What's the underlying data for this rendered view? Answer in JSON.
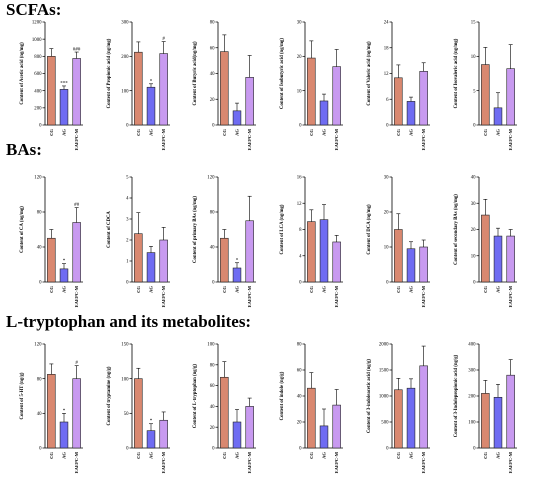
{
  "sections": [
    {
      "title": "SCFAs:"
    },
    {
      "title": "BAs:"
    },
    {
      "title": "L-tryptophan and its metabolites:"
    }
  ],
  "colors": {
    "CG": "#d98870",
    "AG": "#6f6cf2",
    "EAEPC-M": "#c89af0"
  },
  "chart_data": [
    {
      "type": "bar",
      "ylabel": "Content of Acetic acid (ng/mg)",
      "categories": [
        "CG",
        "AG",
        "EAEPC-M"
      ],
      "values": [
        800,
        415,
        775
      ],
      "errors": [
        90,
        40,
        75
      ],
      "ylim": [
        0,
        1200
      ],
      "ticks": [
        0,
        200,
        400,
        600,
        800,
        1000,
        1200
      ],
      "annotations": [
        "",
        "***",
        "###"
      ]
    },
    {
      "type": "bar",
      "ylabel": "Content of Propionic acid (ng/mg)",
      "categories": [
        "CG",
        "AG",
        "EAEPC-M"
      ],
      "values": [
        212,
        110,
        208
      ],
      "errors": [
        30,
        10,
        35
      ],
      "ylim": [
        0,
        300
      ],
      "ticks": [
        0,
        100,
        200,
        300
      ],
      "annotations": [
        "",
        "*",
        "#"
      ]
    },
    {
      "type": "bar",
      "ylabel": "Content of Butyric acid(ng/mg)",
      "categories": [
        "CG",
        "AG",
        "EAEPC-M"
      ],
      "values": [
        57,
        11,
        37
      ],
      "errors": [
        13,
        6,
        17
      ],
      "ylim": [
        0,
        80
      ],
      "ticks": [
        0,
        20,
        40,
        60,
        80
      ],
      "annotations": [
        "",
        "",
        ""
      ]
    },
    {
      "type": "bar",
      "ylabel": "Content of Isobutyric acid (ng/mg)",
      "categories": [
        "CG",
        "AG",
        "EAEPC-M"
      ],
      "values": [
        19.5,
        7,
        17
      ],
      "errors": [
        5,
        2,
        5
      ],
      "ylim": [
        0,
        30
      ],
      "ticks": [
        0,
        10,
        20,
        30
      ],
      "annotations": [
        "",
        "",
        ""
      ]
    },
    {
      "type": "bar",
      "ylabel": "Content of Valeric acid (ng/mg)",
      "categories": [
        "CG",
        "AG",
        "EAEPC-M"
      ],
      "values": [
        11,
        5.5,
        12.5
      ],
      "errors": [
        3,
        1,
        2
      ],
      "ylim": [
        0,
        24
      ],
      "ticks": [
        0,
        6,
        12,
        18,
        24
      ],
      "annotations": [
        "",
        "",
        ""
      ]
    },
    {
      "type": "bar",
      "ylabel": "Content of Isovaleric acid (ng/mg)",
      "categories": [
        "CG",
        "AG",
        "EAEPC-M"
      ],
      "values": [
        8.8,
        2.5,
        8.2
      ],
      "errors": [
        2.5,
        2.2,
        3.5
      ],
      "ylim": [
        0,
        15
      ],
      "ticks": [
        0,
        5,
        10,
        15
      ],
      "annotations": [
        "",
        "",
        ""
      ]
    },
    {
      "type": "bar",
      "ylabel": "Content of CA (ng/mg)",
      "categories": [
        "CG",
        "AG",
        "EAEPC-M"
      ],
      "values": [
        50,
        15,
        68
      ],
      "errors": [
        10,
        6,
        17
      ],
      "ylim": [
        0,
        120
      ],
      "ticks": [
        0,
        40,
        80,
        120
      ],
      "annotations": [
        "",
        "*",
        "##"
      ]
    },
    {
      "type": "bar",
      "ylabel": "Content of CDCA",
      "categories": [
        "CG",
        "AG",
        "EAEPC-M"
      ],
      "values": [
        2.3,
        1.4,
        2.0
      ],
      "errors": [
        1,
        0.3,
        0.6
      ],
      "ylim": [
        0,
        5
      ],
      "ticks": [
        0,
        1,
        2,
        3,
        4,
        5
      ],
      "annotations": [
        "",
        "",
        ""
      ]
    },
    {
      "type": "bar",
      "ylabel": "Content of primary BAs (ng/mg)",
      "categories": [
        "CG",
        "AG",
        "EAEPC-M"
      ],
      "values": [
        50,
        16,
        70
      ],
      "errors": [
        10,
        6,
        28
      ],
      "ylim": [
        0,
        120
      ],
      "ticks": [
        0,
        40,
        80,
        120
      ],
      "annotations": [
        "",
        "*",
        ""
      ]
    },
    {
      "type": "bar",
      "ylabel": "Content of LCA (ng/mg)",
      "categories": [
        "CG",
        "AG",
        "EAEPC-M"
      ],
      "values": [
        9.2,
        9.5,
        6.1
      ],
      "errors": [
        1.8,
        2.3,
        1.0
      ],
      "ylim": [
        0,
        16
      ],
      "ticks": [
        0,
        4,
        8,
        12,
        16
      ],
      "annotations": [
        "",
        "",
        ""
      ]
    },
    {
      "type": "bar",
      "ylabel": "Content of DCA (ng/mg)",
      "categories": [
        "CG",
        "AG",
        "EAEPC-M"
      ],
      "values": [
        15,
        9.5,
        10
      ],
      "errors": [
        4.5,
        2,
        2
      ],
      "ylim": [
        0,
        30
      ],
      "ticks": [
        0,
        10,
        20,
        30
      ],
      "annotations": [
        "",
        "",
        ""
      ]
    },
    {
      "type": "bar",
      "ylabel": "Content of secondary BAs (ng/mg)",
      "categories": [
        "CG",
        "AG",
        "EAEPC-M"
      ],
      "values": [
        25.5,
        17.5,
        17.5
      ],
      "errors": [
        6,
        3,
        2.5
      ],
      "ylim": [
        0,
        40
      ],
      "ticks": [
        0,
        10,
        20,
        30,
        40
      ],
      "annotations": [
        "",
        "",
        ""
      ]
    },
    {
      "type": "bar",
      "ylabel": "Content of 5-HT (ng/g)",
      "categories": [
        "CG",
        "AG",
        "EAEPC-M"
      ],
      "values": [
        85,
        30,
        80
      ],
      "errors": [
        12,
        10,
        15
      ],
      "ylim": [
        0,
        120
      ],
      "ticks": [
        0,
        40,
        80,
        120
      ],
      "annotations": [
        "",
        "*",
        "#"
      ]
    },
    {
      "type": "bar",
      "ylabel": "Content of tryptamine (ng/g)",
      "categories": [
        "CG",
        "AG",
        "EAEPC-M"
      ],
      "values": [
        100,
        25,
        40
      ],
      "errors": [
        15,
        10,
        12
      ],
      "ylim": [
        0,
        150
      ],
      "ticks": [
        0,
        50,
        100,
        150
      ],
      "annotations": [
        "",
        "*",
        ""
      ]
    },
    {
      "type": "bar",
      "ylabel": "Content of L-tryptophan (ng/g)",
      "categories": [
        "CG",
        "AG",
        "EAEPC-M"
      ],
      "values": [
        68,
        25,
        40
      ],
      "errors": [
        15,
        12,
        8
      ],
      "ylim": [
        0,
        100
      ],
      "ticks": [
        0,
        20,
        40,
        60,
        80,
        100
      ],
      "annotations": [
        "",
        "",
        ""
      ]
    },
    {
      "type": "bar",
      "ylabel": "Content of indole (ng/g)",
      "categories": [
        "CG",
        "AG",
        "EAEPC-M"
      ],
      "values": [
        46,
        17,
        33
      ],
      "errors": [
        12,
        13,
        12
      ],
      "ylim": [
        0,
        80
      ],
      "ticks": [
        0,
        20,
        40,
        60,
        80
      ],
      "annotations": [
        "",
        "",
        ""
      ]
    },
    {
      "type": "bar",
      "ylabel": "Content of 3-indoleacetic acid (ng/g)",
      "categories": [
        "CG",
        "AG",
        "EAEPC-M"
      ],
      "values": [
        1120,
        1150,
        1580
      ],
      "errors": [
        220,
        180,
        380
      ],
      "ylim": [
        0,
        2000
      ],
      "ticks": [
        0,
        500,
        1000,
        1500,
        2000
      ],
      "annotations": [
        "",
        "",
        ""
      ]
    },
    {
      "type": "bar",
      "ylabel": "Content of 3-Indolepropionic acid (ng/g)",
      "categories": [
        "CG",
        "AG",
        "EAEPC-M"
      ],
      "values": [
        210,
        195,
        280
      ],
      "errors": [
        50,
        50,
        60
      ],
      "ylim": [
        0,
        400
      ],
      "ticks": [
        0,
        100,
        200,
        300,
        400
      ],
      "annotations": [
        "",
        "",
        ""
      ]
    }
  ]
}
